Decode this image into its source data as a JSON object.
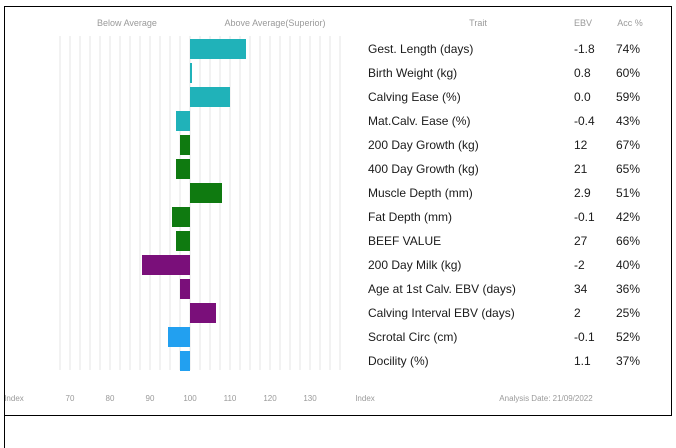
{
  "chart_data": {
    "type": "bar",
    "orientation": "horizontal",
    "header_left": "Below Average",
    "header_right": "Above Average(Superior)",
    "col_trait": "Trait",
    "col_ebv": "EBV",
    "col_acc": "Acc %",
    "axis_label_left": "Index",
    "axis_label_right": "Index",
    "xticks": [
      "70",
      "80",
      "90",
      "100",
      "110",
      "120",
      "130"
    ],
    "xlim": [
      67,
      140
    ],
    "baseline": 100,
    "analysis_date": "Analysis Date: 21/09/2022",
    "traits": [
      {
        "label": "Gest. Length (days)",
        "ebv": "-1.8",
        "acc": "74%",
        "value": 114,
        "color": "#20b2b9"
      },
      {
        "label": "Birth Weight (kg)",
        "ebv": "0.8",
        "acc": "60%",
        "value": 100.5,
        "color": "#20b2b9"
      },
      {
        "label": "Calving Ease (%)",
        "ebv": "0.0",
        "acc": "59%",
        "value": 110,
        "color": "#20b2b9"
      },
      {
        "label": "Mat.Calv. Ease (%)",
        "ebv": "-0.4",
        "acc": "43%",
        "value": 96.5,
        "color": "#20b2b9"
      },
      {
        "label": "200 Day Growth (kg)",
        "ebv": "12",
        "acc": "67%",
        "value": 97.5,
        "color": "#0f7a10"
      },
      {
        "label": "400 Day Growth (kg)",
        "ebv": "21",
        "acc": "65%",
        "value": 96.5,
        "color": "#0f7a10"
      },
      {
        "label": "Muscle Depth (mm)",
        "ebv": "2.9",
        "acc": "51%",
        "value": 108,
        "color": "#0f7a10"
      },
      {
        "label": "Fat Depth (mm)",
        "ebv": "-0.1",
        "acc": "42%",
        "value": 95.5,
        "color": "#0f7a10"
      },
      {
        "label": "BEEF VALUE",
        "ebv": "27",
        "acc": "66%",
        "value": 96.5,
        "color": "#0f7a10"
      },
      {
        "label": "200 Day Milk (kg)",
        "ebv": "-2",
        "acc": "40%",
        "value": 88,
        "color": "#7a0f7a"
      },
      {
        "label": "Age at 1st Calv. EBV (days)",
        "ebv": "34",
        "acc": "36%",
        "value": 97.5,
        "color": "#7a0f7a"
      },
      {
        "label": "Calving Interval EBV (days)",
        "ebv": "2",
        "acc": "25%",
        "value": 106.5,
        "color": "#7a0f7a"
      },
      {
        "label": "Scrotal Circ (cm)",
        "ebv": "-0.1",
        "acc": "52%",
        "value": 94.5,
        "color": "#22a0f0"
      },
      {
        "label": "Docility (%)",
        "ebv": "1.1",
        "acc": "37%",
        "value": 97.5,
        "color": "#22a0f0"
      }
    ]
  }
}
